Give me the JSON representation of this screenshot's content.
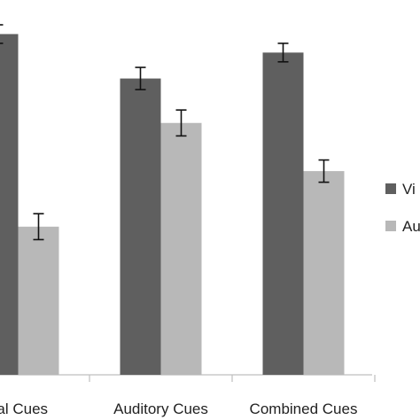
{
  "chart_data": {
    "type": "bar",
    "categories": [
      "ual Cues",
      "Auditory Cues",
      "Combined Cues"
    ],
    "series": [
      {
        "name": "Vi",
        "color": "#5f5f5f",
        "values": [
          92,
          80,
          87
        ],
        "errors": [
          2.5,
          3.0,
          2.5
        ]
      },
      {
        "name": "Au",
        "color": "#b8b8b8",
        "values": [
          40,
          68,
          55
        ],
        "errors": [
          3.5,
          3.5,
          3.0
        ]
      }
    ],
    "ylim": [
      0,
      100
    ],
    "legend_position": "right",
    "grid": false
  }
}
